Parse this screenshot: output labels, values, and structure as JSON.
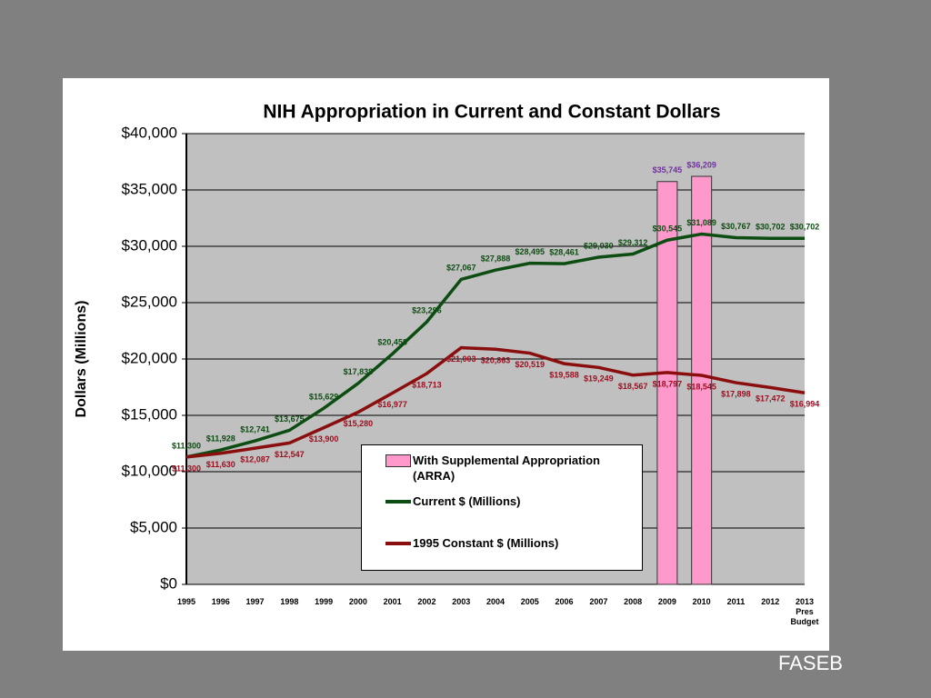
{
  "chart_data": {
    "type": "line",
    "title": "NIH Appropriation in Current and Constant Dollars",
    "y_label": "Dollars (Millions)",
    "categories": [
      "1995",
      "1996",
      "1997",
      "1998",
      "1999",
      "2000",
      "2001",
      "2002",
      "2003",
      "2004",
      "2005",
      "2006",
      "2007",
      "2008",
      "2009",
      "2010",
      "2011",
      "2012",
      "2013 Pres Budget"
    ],
    "ylim": [
      0,
      40000
    ],
    "yticks": [
      {
        "value": 0,
        "label": "$0"
      },
      {
        "value": 5000,
        "label": "$5,000"
      },
      {
        "value": 10000,
        "label": "$10,000"
      },
      {
        "value": 15000,
        "label": "$15,000"
      },
      {
        "value": 20000,
        "label": "$20,000"
      },
      {
        "value": 25000,
        "label": "$25,000"
      },
      {
        "value": 30000,
        "label": "$30,000"
      },
      {
        "value": 35000,
        "label": "$35,000"
      },
      {
        "value": 40000,
        "label": "$40,000"
      }
    ],
    "grid": true,
    "series": [
      {
        "name": "With Supplemental Appropriation (ARRA)",
        "type": "bar",
        "color": "#ff99cc",
        "label_color": "#7030a0",
        "values": [
          null,
          null,
          null,
          null,
          null,
          null,
          null,
          null,
          null,
          null,
          null,
          null,
          null,
          null,
          35745,
          36209,
          null,
          null,
          null
        ],
        "value_labels": [
          null,
          null,
          null,
          null,
          null,
          null,
          null,
          null,
          null,
          null,
          null,
          null,
          null,
          null,
          "$35,745",
          "$36,209",
          null,
          null,
          null
        ]
      },
      {
        "name": "Current $ (Millions)",
        "type": "line",
        "color": "#0d4d12",
        "label_color": "#0d4d12",
        "label_side": "above",
        "values": [
          11300,
          11928,
          12741,
          13675,
          15629,
          17838,
          20458,
          23296,
          27067,
          27888,
          28495,
          28461,
          29030,
          29312,
          30545,
          31089,
          30767,
          30702,
          30702
        ],
        "value_labels": [
          "$11,300",
          "$11,928",
          "$12,741",
          "$13,675",
          "$15,629",
          "$17,838",
          "$20,458",
          "$23,296",
          "$27,067",
          "$27,888",
          "$28,495",
          "$28,461",
          "$29,030",
          "$29,312",
          "$30,545",
          "$31,089",
          "$30,767",
          "$30,702",
          "$30,702"
        ]
      },
      {
        "name": "1995 Constant $ (Millions)",
        "type": "line",
        "color": "#8b0e0e",
        "label_color": "#9b1020",
        "label_side": "below",
        "values": [
          11300,
          11630,
          12087,
          12547,
          13900,
          15280,
          16977,
          18713,
          21003,
          20863,
          20519,
          19588,
          19249,
          18567,
          18797,
          18545,
          17898,
          17472,
          16994
        ],
        "value_labels": [
          "$11,300",
          "$11,630",
          "$12,087",
          "$12,547",
          "$13,900",
          "$15,280",
          "$16,977",
          "$18,713",
          "$21,003",
          "$20,863",
          "$20,519",
          "$19,588",
          "$19,249",
          "$18,567",
          "$18,797",
          "$18,545",
          "$17,898",
          "$17,472",
          "$16,994"
        ]
      }
    ]
  },
  "footer": "FASEB"
}
